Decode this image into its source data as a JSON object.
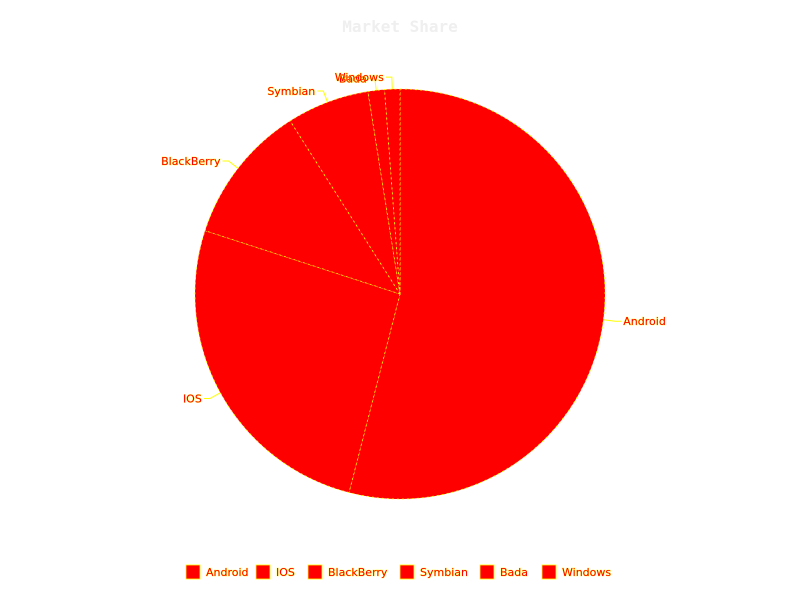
{
  "chart_data": {
    "type": "pie",
    "title": "Market Share",
    "categories": [
      "Android",
      "IOS",
      "BlackBerry",
      "Symbian",
      "Bada",
      "Windows"
    ],
    "values": [
      54.0,
      26.0,
      11.0,
      6.5,
      1.3,
      1.2
    ],
    "unit": "",
    "legend_position": "bottom",
    "slice_color": "#ff0000",
    "outline_color": "#ffff00",
    "title_color": "#efefef"
  }
}
